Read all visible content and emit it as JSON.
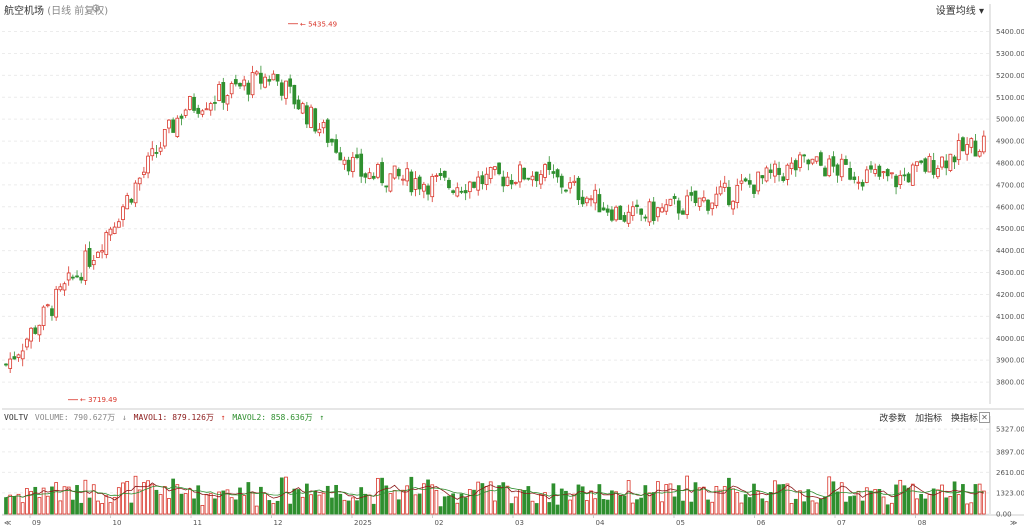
{
  "header": {
    "title": "航空机场",
    "subtitle": "(日线 前复权)",
    "right_label": "设置均线",
    "right_arrow": "▾"
  },
  "volume_panel": {
    "label": "VOLTV",
    "volume_text": "VOLUME: 790.627万",
    "arrow_volume": "↓",
    "mavol1_text": "MAVOL1: 879.126万",
    "arrow_mavol1": "↑",
    "mavol2_text": "MAVOL2: 858.636万",
    "arrow_mavol2": "↑",
    "btn_params": "改参数",
    "btn_add": "加指标",
    "btn_switch": "换指标",
    "close": "✕"
  },
  "colors": {
    "up": "#d9362b",
    "down": "#2f8f2f",
    "mavol1": "#8b1a1a",
    "mavol2": "#2f8f2f",
    "grid": "#ececec",
    "axis": "#cccccc"
  },
  "chart_data": [
    {
      "type": "candlestick",
      "title": "航空机场",
      "subtitle": "(日线 前复权)",
      "x_tick_labels": [
        "09",
        "10",
        "11",
        "12",
        "2025",
        "02",
        "03",
        "04",
        "05",
        "06",
        "07",
        "08"
      ],
      "y_ticks": [
        "3800.00",
        "3900.00",
        "4000.00",
        "4100.00",
        "4200.00",
        "4300.00",
        "4400.00",
        "4500.00",
        "4600.00",
        "4700.00",
        "4800.00",
        "4900.00",
        "5000.00",
        "5100.00",
        "5200.00",
        "5300.00",
        "5400.00"
      ],
      "ylim": [
        3700,
        5480
      ],
      "annotations": [
        {
          "text": "5435.49",
          "value": 5435.49,
          "kind": "max"
        },
        {
          "text": "3719.49",
          "value": 3719.49,
          "kind": "min"
        }
      ],
      "month_anchor": [
        {
          "label": "09",
          "close": 3880
        },
        {
          "label": "10",
          "close": 4400
        },
        {
          "label": "11",
          "close": 5050
        },
        {
          "label": "12",
          "close": 5200
        },
        {
          "label": "2025",
          "close": 4750
        },
        {
          "label": "02",
          "close": 4700
        },
        {
          "label": "03",
          "close": 4760
        },
        {
          "label": "04",
          "close": 4550
        },
        {
          "label": "05",
          "close": 4640
        },
        {
          "label": "06",
          "close": 4800
        },
        {
          "label": "07",
          "close": 4720
        },
        {
          "label": "08",
          "close": 4900
        }
      ]
    },
    {
      "type": "bar",
      "title": "VOLTV",
      "y_ticks": [
        "0.00",
        "1323.00",
        "2610.00",
        "3897.00",
        "5327.00"
      ],
      "ylim": [
        0,
        5900
      ],
      "unit": "万",
      "series": [
        {
          "name": "VOLUME",
          "last": 790.627
        },
        {
          "name": "MAVOL1",
          "last": 879.126
        },
        {
          "name": "MAVOL2",
          "last": 858.636
        }
      ]
    }
  ]
}
